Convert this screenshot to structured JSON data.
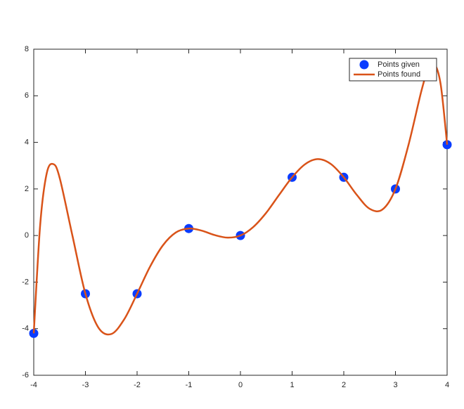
{
  "chart_data": {
    "type": "line",
    "xlim": [
      -4,
      4
    ],
    "ylim": [
      -6,
      8
    ],
    "xticks": [
      -4,
      -3,
      -2,
      -1,
      0,
      1,
      2,
      3,
      4
    ],
    "yticks": [
      -6,
      -4,
      -2,
      0,
      2,
      4,
      6,
      8
    ],
    "legend": "top-right",
    "series": [
      {
        "name": "Points given",
        "type": "scatter",
        "color": "#0a3cff",
        "x": [
          -4,
          -3,
          -2,
          -1,
          0,
          1,
          2,
          3,
          4
        ],
        "values": [
          -4.2,
          -2.5,
          -2.5,
          0.3,
          0,
          2.5,
          2.5,
          2,
          3.9
        ]
      },
      {
        "name": "Points found",
        "type": "line",
        "color": "#d95319",
        "x": [
          -4,
          -3.875,
          -3.75,
          -3.625,
          -3.5,
          -3.25,
          -3,
          -2.75,
          -2.5,
          -2.25,
          -2,
          -1.75,
          -1.5,
          -1.25,
          -1,
          -0.75,
          -0.5,
          -0.25,
          0,
          0.25,
          0.5,
          0.75,
          1,
          1.25,
          1.5,
          1.75,
          2,
          2.25,
          2.5,
          2.75,
          3,
          3.25,
          3.5,
          3.625,
          3.75,
          3.875,
          4
        ],
        "values": [
          -4.2,
          0.47,
          2.66,
          3.07,
          2.49,
          -0.02,
          -2.5,
          -3.95,
          -4.23,
          -3.6,
          -2.5,
          -1.34,
          -0.42,
          0.13,
          0.3,
          0.21,
          0.02,
          -0.09,
          0,
          0.37,
          0.98,
          1.75,
          2.5,
          3.06,
          3.28,
          3.07,
          2.5,
          1.75,
          1.15,
          1.12,
          2,
          3.87,
          6.19,
          7.07,
          7.37,
          6.49,
          3.9
        ]
      }
    ]
  }
}
